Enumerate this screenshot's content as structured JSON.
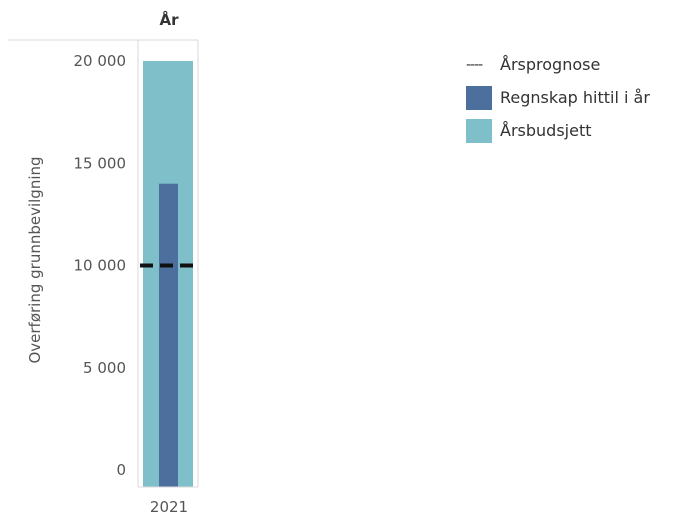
{
  "chart_data": {
    "type": "bar",
    "column_header": "År",
    "ylabel": "Overføring grunnbevilgning",
    "categories": [
      "2021"
    ],
    "ylim": [
      0,
      20500
    ],
    "yticks": [
      0,
      5000,
      10000,
      15000,
      20000
    ],
    "ytick_labels": [
      "0",
      "5 000",
      "10 000",
      "15 000",
      "20 000"
    ],
    "series": [
      {
        "name": "Årsbudsjett",
        "values": [
          20000
        ],
        "color": "#7ebfc9",
        "mark": "wide-bar"
      },
      {
        "name": "Regnskap hittil i år",
        "values": [
          14000
        ],
        "color": "#4d6f9e",
        "mark": "narrow-bar"
      },
      {
        "name": "Årsprognose",
        "values": [
          10000
        ],
        "color": "#111111",
        "mark": "dashed-line"
      }
    ],
    "legend": {
      "position": "right",
      "entries": [
        {
          "label": "Årsprognose",
          "symbol": "----"
        },
        {
          "label": "Regnskap hittil i år",
          "color": "#4d6f9e"
        },
        {
          "label": "Årsbudsjett",
          "color": "#7ebfc9"
        }
      ]
    },
    "grid": false
  }
}
